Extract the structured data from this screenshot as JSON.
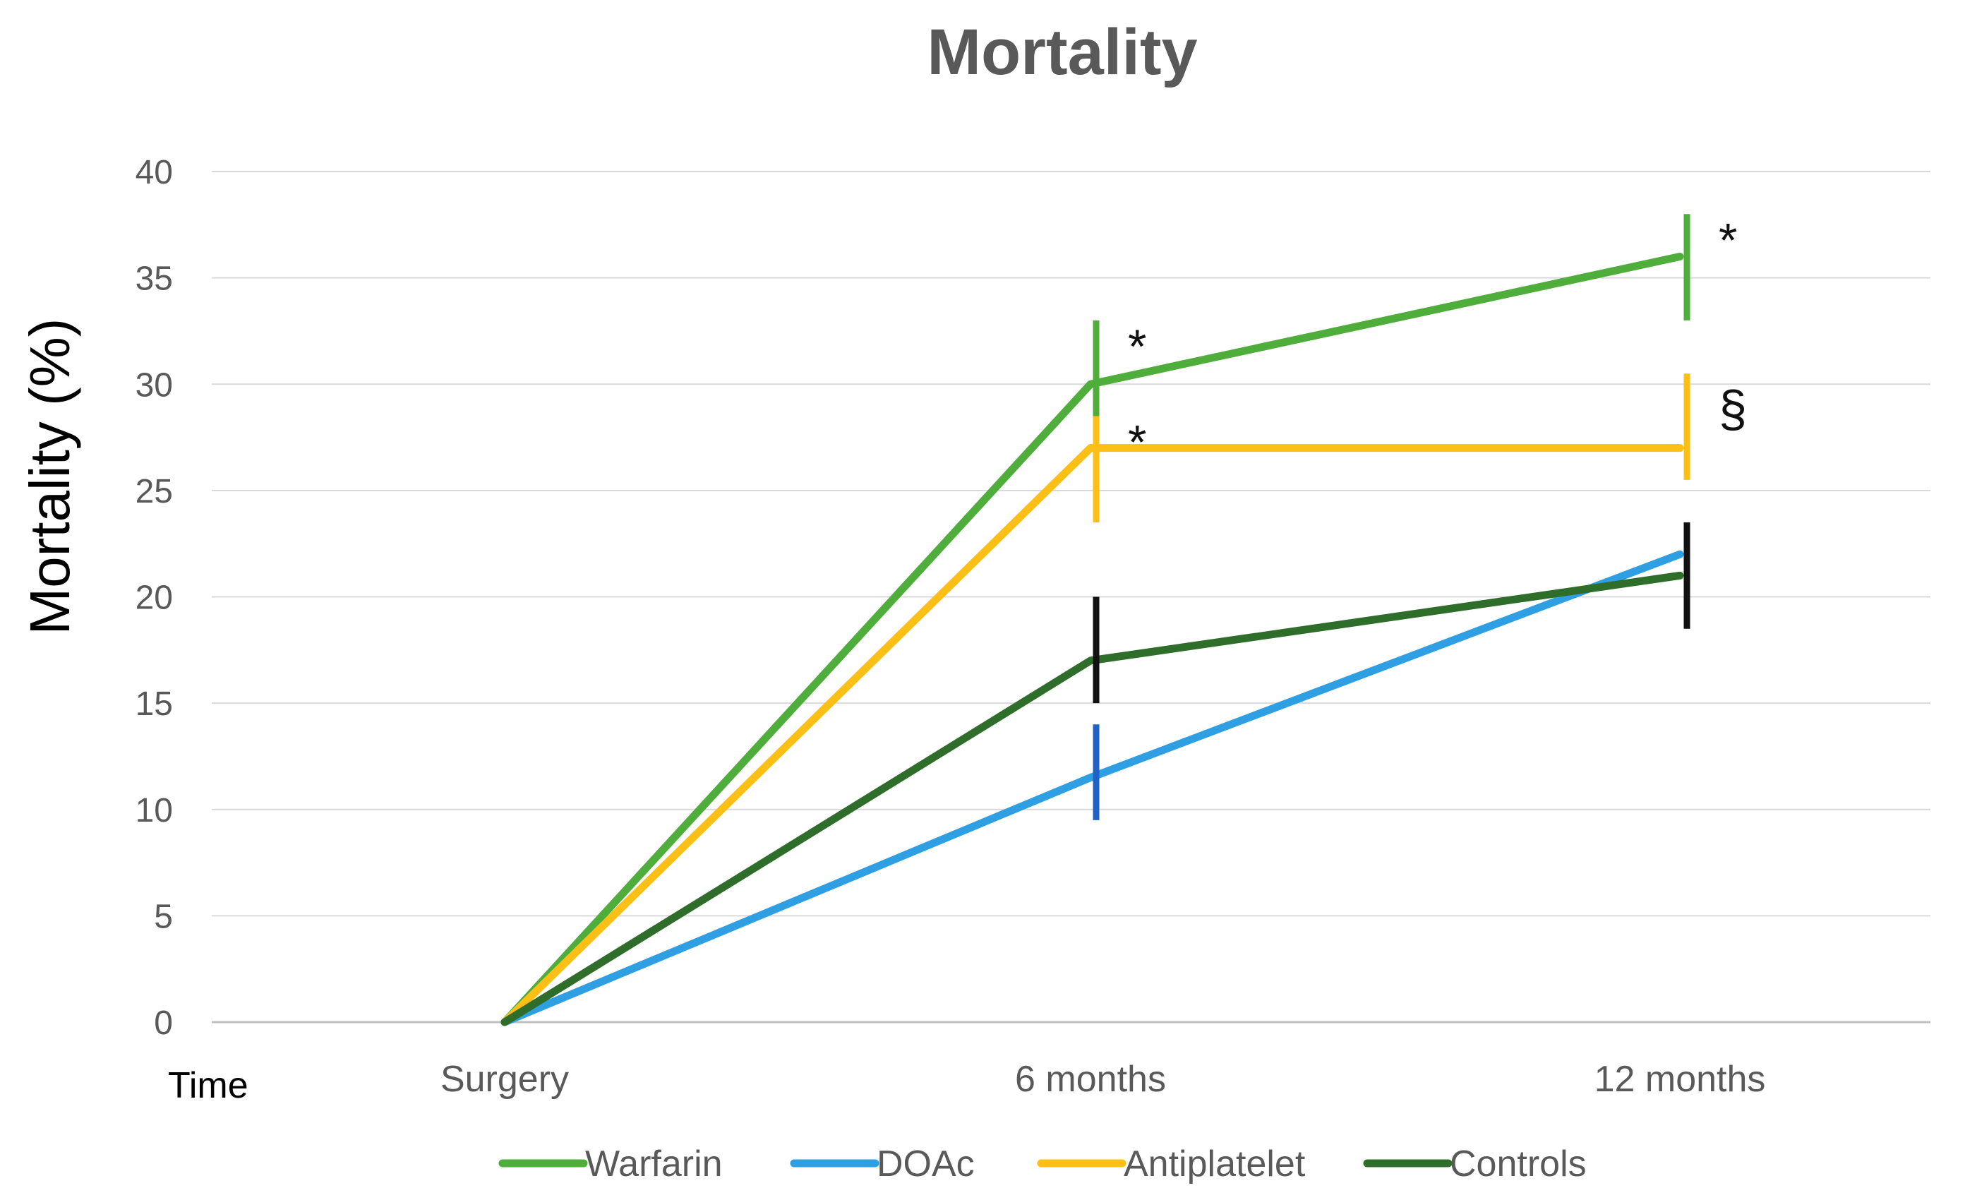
{
  "chart_data": {
    "type": "line",
    "title": "Mortality",
    "ylabel": "Mortality (%)",
    "xlabel": "Time",
    "ylim": [
      0,
      40
    ],
    "ytick_step": 5,
    "yticks": [
      "0",
      "5",
      "10",
      "15",
      "20",
      "25",
      "30",
      "35",
      "40"
    ],
    "categories": [
      "Surgery",
      "6 months",
      "12 months"
    ],
    "grid": true,
    "legend_position": "bottom",
    "series": [
      {
        "name": "Warfarin",
        "color": "#4fad3b",
        "values": [
          0,
          30,
          36
        ],
        "error_low": [
          null,
          28,
          33
        ],
        "error_high": [
          null,
          33,
          38
        ],
        "error_color": "#4fad3b",
        "annotations": [
          null,
          "*",
          "*"
        ]
      },
      {
        "name": "DOAc",
        "color": "#2f9fe3",
        "values": [
          0,
          11.5,
          22
        ],
        "error_low": [
          null,
          9.5,
          20
        ],
        "error_high": [
          null,
          14,
          23.5
        ],
        "error_color": "#1f62c4",
        "annotations": [
          null,
          null,
          null
        ]
      },
      {
        "name": "Antiplatelet",
        "color": "#fcbf15",
        "values": [
          0,
          27,
          27
        ],
        "error_low": [
          null,
          23.5,
          25.5
        ],
        "error_high": [
          null,
          28.5,
          30.5
        ],
        "error_color": "#fcbf15",
        "annotations": [
          null,
          "*",
          "§"
        ]
      },
      {
        "name": "Controls",
        "color": "#2f6e2a",
        "values": [
          0,
          17,
          21
        ],
        "error_low": [
          null,
          15,
          18.5
        ],
        "error_high": [
          null,
          20,
          23.5
        ],
        "error_color": "#111111",
        "annotations": [
          null,
          null,
          null
        ]
      }
    ]
  }
}
